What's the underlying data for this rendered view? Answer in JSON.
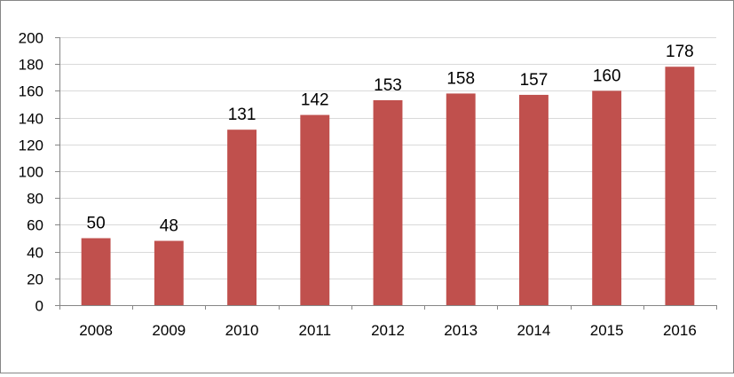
{
  "chart_data": {
    "type": "bar",
    "title": "",
    "xlabel": "",
    "ylabel": "",
    "categories": [
      "2008",
      "2009",
      "2010",
      "2011",
      "2012",
      "2013",
      "2014",
      "2015",
      "2016"
    ],
    "values": [
      50,
      48,
      131,
      142,
      153,
      158,
      157,
      160,
      178
    ],
    "ylim": [
      0,
      200
    ],
    "yticks": [
      0,
      20,
      40,
      60,
      80,
      100,
      120,
      140,
      160,
      180,
      200
    ],
    "grid": true,
    "legend": "none",
    "data_labels": true,
    "colors": {
      "bar": "#c0504d",
      "grid": "#d9d9d9",
      "axis": "#868686",
      "border": "#868686"
    }
  }
}
